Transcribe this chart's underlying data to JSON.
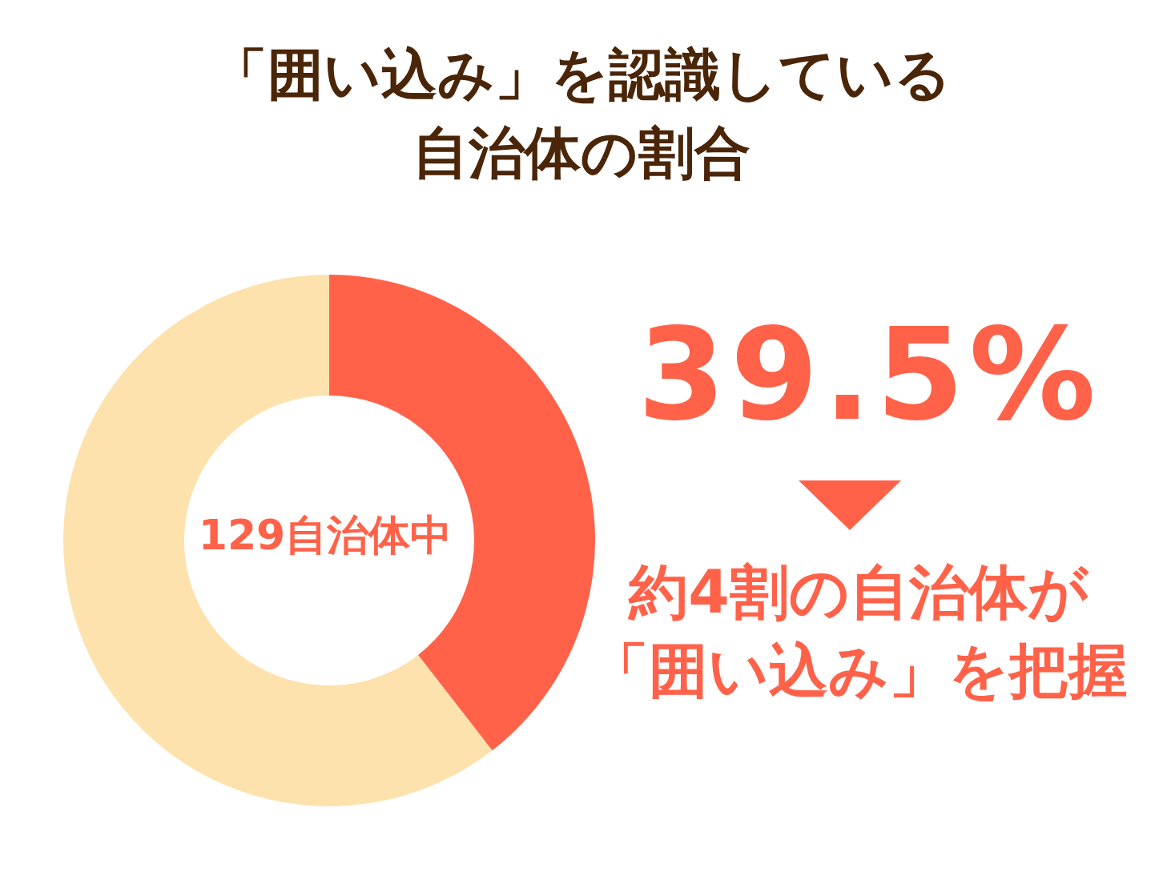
{
  "chart_data": {
    "type": "donut",
    "title": "「囲い込み」を認識している自治体の割合",
    "categories": [
      null,
      null
    ],
    "values": [
      39.5,
      60.5
    ],
    "colors": [
      "#ff6249",
      "#fee2ad"
    ],
    "value_labels": [
      "39.5%",
      null
    ],
    "annotations": [
      "129自治体中",
      "約4割の自治体が「囲い込み」を把握"
    ]
  }
}
